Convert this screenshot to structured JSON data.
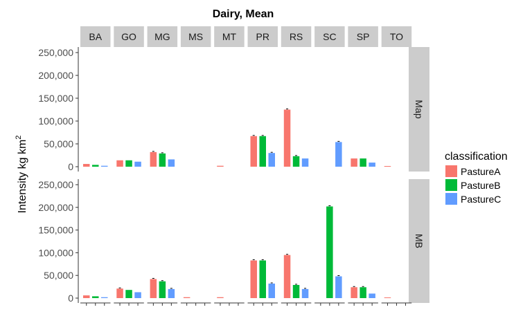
{
  "chart_data": {
    "type": "bar",
    "title": "Dairy, Mean",
    "ylabel": "Intensity kg km",
    "ylabel_superscript": "2",
    "ylim": [
      0,
      250000
    ],
    "yticks": [
      0,
      50000,
      100000,
      150000,
      200000,
      250000
    ],
    "ytick_labels": [
      "0",
      "50,000",
      "100,000",
      "150,000",
      "200,000",
      "250,000"
    ],
    "grid": false,
    "legend": {
      "title": "classification",
      "position": "right",
      "entries": [
        "PastureA",
        "PastureB",
        "PastureC"
      ]
    },
    "colors": {
      "PastureA": "#F8766D",
      "PastureB": "#00BA38",
      "PastureC": "#619CFF",
      "strip": "#cccccc"
    },
    "categories": [
      "BA",
      "GO",
      "MG",
      "MS",
      "MT",
      "PR",
      "RS",
      "SC",
      "SP",
      "TO"
    ],
    "panels": [
      {
        "name": "Map",
        "series": [
          {
            "name": "PastureA",
            "values": [
              6000,
              14000,
              32000,
              0,
              2000,
              67000,
              125000,
              0,
              18000,
              1500
            ]
          },
          {
            "name": "PastureB",
            "values": [
              4000,
              14000,
              29000,
              0,
              0,
              67000,
              23000,
              0,
              18000,
              0
            ]
          },
          {
            "name": "PastureC",
            "values": [
              2000,
              11000,
              16000,
              0,
              0,
              30000,
              18000,
              54000,
              9000,
              0
            ]
          }
        ]
      },
      {
        "name": "MB",
        "series": [
          {
            "name": "PastureA",
            "values": [
              6000,
              21000,
              42000,
              2000,
              2000,
              83000,
              95000,
              0,
              24000,
              1500
            ]
          },
          {
            "name": "PastureB",
            "values": [
              4000,
              18000,
              37000,
              0,
              0,
              83000,
              29000,
              202000,
              24000,
              0
            ]
          },
          {
            "name": "PastureC",
            "values": [
              2000,
              13000,
              20000,
              0,
              0,
              32000,
              20000,
              48000,
              10000,
              0
            ]
          }
        ]
      }
    ]
  }
}
